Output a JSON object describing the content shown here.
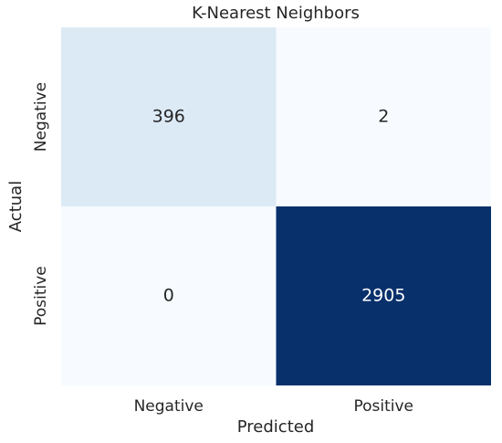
{
  "chart_data": {
    "type": "heatmap",
    "title": "K-Nearest Neighbors",
    "x_label": "Predicted",
    "y_label": "Actual",
    "x_categories": [
      "Negative",
      "Positive"
    ],
    "y_categories": [
      "Negative",
      "Positive"
    ],
    "values": [
      [
        396,
        2
      ],
      [
        0,
        2905
      ]
    ],
    "colormap": [
      "#f7fbff",
      "#deebf7",
      "#c6dbef",
      "#9ecae1",
      "#6baed6",
      "#4292c6",
      "#2171b5",
      "#08519c",
      "#08306b"
    ]
  }
}
